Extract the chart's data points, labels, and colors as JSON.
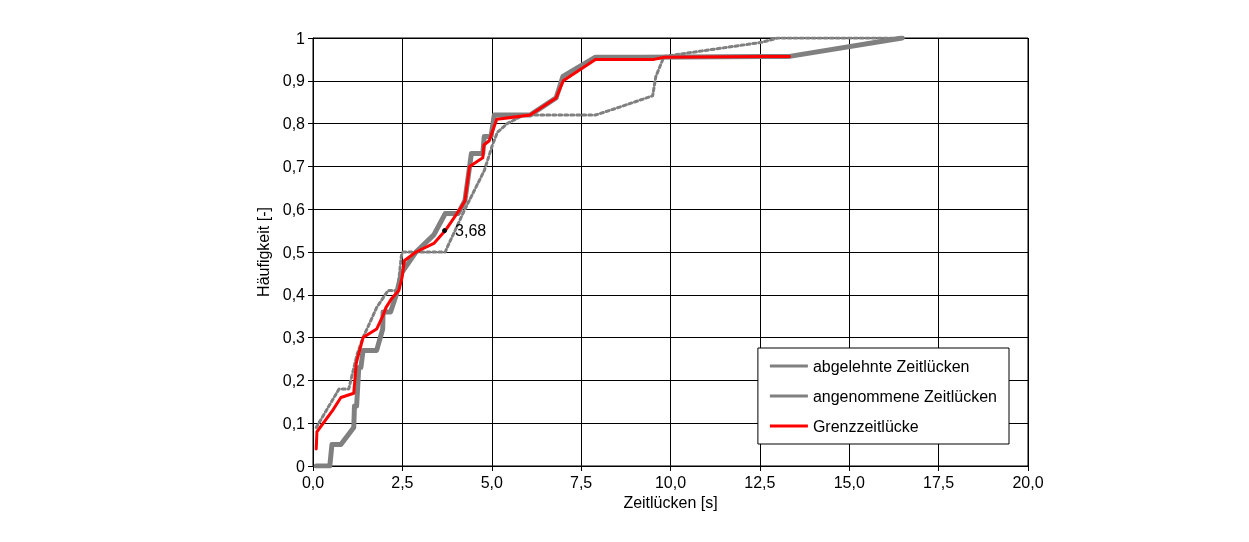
{
  "chart_data": {
    "type": "line",
    "xlabel": "Zeitlücken [s]",
    "ylabel": "Häufigkeit [-]",
    "xlim": [
      0,
      20
    ],
    "xticks": [
      {
        "value": 0,
        "label": "0,0"
      },
      {
        "value": 2.5,
        "label": "2,5"
      },
      {
        "value": 5,
        "label": "5,0"
      },
      {
        "value": 7.5,
        "label": "7,5"
      },
      {
        "value": 10,
        "label": "10,0"
      },
      {
        "value": 12.5,
        "label": "12,5"
      },
      {
        "value": 15,
        "label": "15,0"
      },
      {
        "value": 17.5,
        "label": "17,5"
      },
      {
        "value": 20,
        "label": "20,0"
      }
    ],
    "ylim": [
      0,
      1
    ],
    "yticks": [
      0,
      {
        "value": 0.1,
        "label": "0,1"
      },
      {
        "value": 0.2,
        "label": "0,2"
      },
      {
        "value": 0.3,
        "label": "0,3"
      },
      {
        "value": 0.4,
        "label": "0,4"
      },
      {
        "value": 0.5,
        "label": "0,5"
      },
      {
        "value": 0.6,
        "label": "0,6"
      },
      {
        "value": 0.7,
        "label": "0,7"
      },
      {
        "value": 0.8,
        "label": "0,8"
      },
      {
        "value": 0.9,
        "label": "0,9"
      },
      1
    ],
    "grid": true,
    "legend": "bottom right",
    "marker": "none",
    "series": [
      {
        "name": "abgelehnte Zeitlücken",
        "color": "#808080",
        "line_style": "solid",
        "x": [
          0.09,
          0.47,
          0.53,
          0.78,
          1.14,
          1.16,
          1.22,
          1.28,
          1.34,
          1.4,
          1.78,
          1.95,
          1.96,
          2.17,
          2.33,
          2.47,
          2.88,
          3.38,
          3.7,
          4.06,
          4.25,
          4.43,
          4.75,
          4.79,
          4.98,
          5.07,
          6.07,
          6.8,
          6.99,
          7.9,
          9.18,
          13.33,
          16.48
        ],
        "values": [
          0,
          0,
          0.05,
          0.05,
          0.09,
          0.14,
          0.14,
          0.23,
          0.23,
          0.27,
          0.27,
          0.32,
          0.36,
          0.36,
          0.4,
          0.45,
          0.5,
          0.54,
          0.59,
          0.59,
          0.62,
          0.73,
          0.73,
          0.77,
          0.77,
          0.82,
          0.82,
          0.86,
          0.91,
          0.955,
          0.955,
          0.957,
          1
        ]
      },
      {
        "name": "angenommene Zeitlücken",
        "color": "#808080",
        "line_style": "dotted",
        "x": [
          0.09,
          0.73,
          1.0,
          1.23,
          1.4,
          1.78,
          2.1,
          2.37,
          2.47,
          2.51,
          3.7,
          3.75,
          4.25,
          4.79,
          5.02,
          5.16,
          5.43,
          5.89,
          7.9,
          8.63,
          9.5,
          9.59,
          9.82,
          12.56,
          13.0,
          16.5
        ],
        "values": [
          0.09,
          0.18,
          0.18,
          0.26,
          0.3,
          0.37,
          0.41,
          0.41,
          0.49,
          0.5,
          0.5,
          0.51,
          0.6,
          0.69,
          0.75,
          0.78,
          0.8,
          0.82,
          0.82,
          0.84,
          0.865,
          0.91,
          0.957,
          0.99,
          1,
          1
        ]
      },
      {
        "name": "Grenzzeitlücke",
        "color": "#ff0000",
        "line_style": "solid",
        "x": [
          0.09,
          0.11,
          0.55,
          0.78,
          1.14,
          1.21,
          1.24,
          1.4,
          1.78,
          1.95,
          2.04,
          2.19,
          2.4,
          2.49,
          2.56,
          2.88,
          3.38,
          3.7,
          4.11,
          4.25,
          4.38,
          4.75,
          4.78,
          4.93,
          5.14,
          6.07,
          6.8,
          7.0,
          7.9,
          9.54,
          9.82,
          13.33
        ],
        "values": [
          0.04,
          0.08,
          0.13,
          0.16,
          0.17,
          0.24,
          0.25,
          0.3,
          0.32,
          0.35,
          0.37,
          0.39,
          0.41,
          0.44,
          0.48,
          0.5,
          0.52,
          0.55,
          0.6,
          0.62,
          0.7,
          0.72,
          0.75,
          0.76,
          0.81,
          0.82,
          0.86,
          0.9,
          0.95,
          0.95,
          0.955,
          0.957
        ]
      }
    ],
    "annotations": [
      {
        "text": "3,68",
        "x": 3.68,
        "y": 0.55
      }
    ]
  }
}
